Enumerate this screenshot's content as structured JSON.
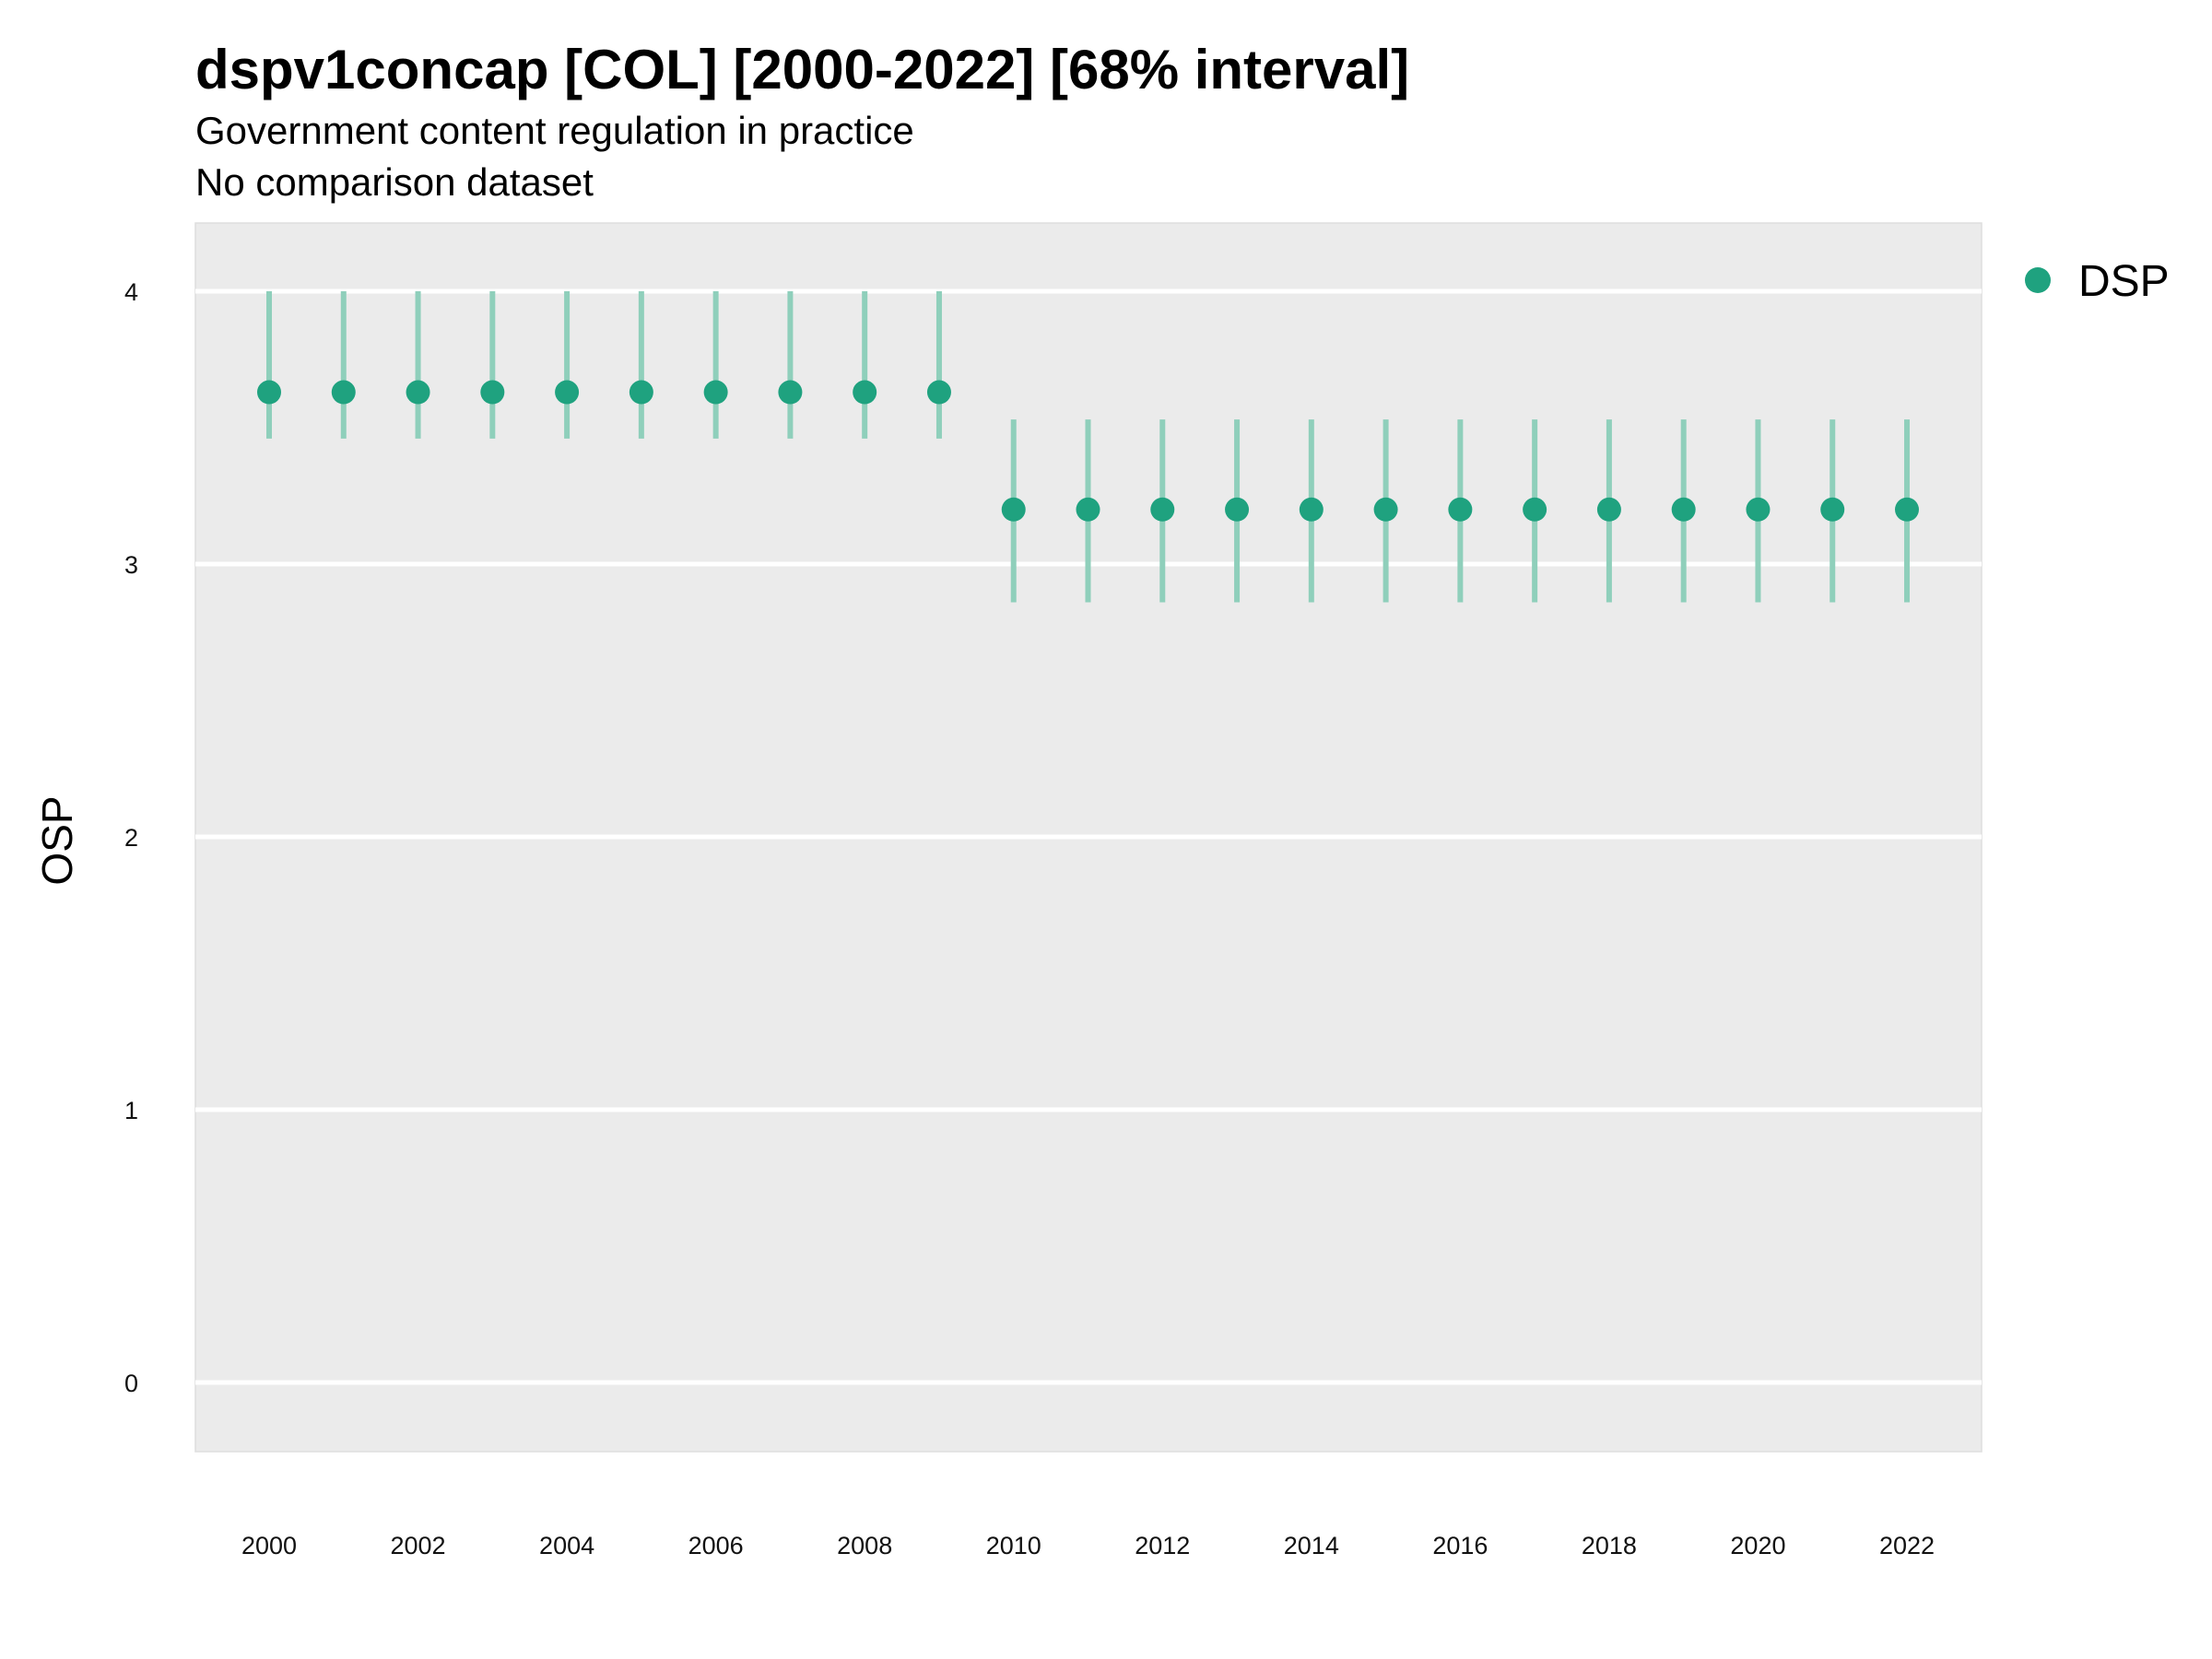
{
  "colors": {
    "panel_background": "#ebebeb",
    "gridline": "#ffffff",
    "point": "#1fa27f",
    "interval": "#8fcfbb"
  },
  "chart_data": {
    "type": "scatter",
    "title": "dspv1concap [COL] [2000-2022] [68% interval]",
    "subtitle": "Government content regulation in practice",
    "subtitle2": "No comparison dataset",
    "xlabel": "",
    "ylabel": "OSP",
    "xlim": [
      1999,
      2023
    ],
    "ylim": [
      -0.25,
      4.25
    ],
    "yticks": [
      0,
      1,
      2,
      3,
      4
    ],
    "xticks": [
      2000,
      2002,
      2004,
      2006,
      2008,
      2010,
      2012,
      2014,
      2016,
      2018,
      2020,
      2022
    ],
    "grid": true,
    "legend": {
      "position": "right",
      "entries": [
        "DSP"
      ]
    },
    "series": [
      {
        "name": "DSP",
        "x": [
          2000,
          2001,
          2002,
          2003,
          2004,
          2005,
          2006,
          2007,
          2008,
          2009,
          2010,
          2011,
          2012,
          2013,
          2014,
          2015,
          2016,
          2017,
          2018,
          2019,
          2020,
          2021,
          2022
        ],
        "y": [
          3.63,
          3.63,
          3.63,
          3.63,
          3.63,
          3.63,
          3.63,
          3.63,
          3.63,
          3.63,
          3.2,
          3.2,
          3.2,
          3.2,
          3.2,
          3.2,
          3.2,
          3.2,
          3.2,
          3.2,
          3.2,
          3.2,
          3.2
        ],
        "lower": [
          3.46,
          3.46,
          3.46,
          3.46,
          3.46,
          3.46,
          3.46,
          3.46,
          3.46,
          3.46,
          2.86,
          2.86,
          2.86,
          2.86,
          2.86,
          2.86,
          2.86,
          2.86,
          2.86,
          2.86,
          2.86,
          2.86,
          2.86
        ],
        "upper": [
          4.0,
          4.0,
          4.0,
          4.0,
          4.0,
          4.0,
          4.0,
          4.0,
          4.0,
          4.0,
          3.53,
          3.53,
          3.53,
          3.53,
          3.53,
          3.53,
          3.53,
          3.53,
          3.53,
          3.53,
          3.53,
          3.53,
          3.53
        ]
      }
    ]
  }
}
